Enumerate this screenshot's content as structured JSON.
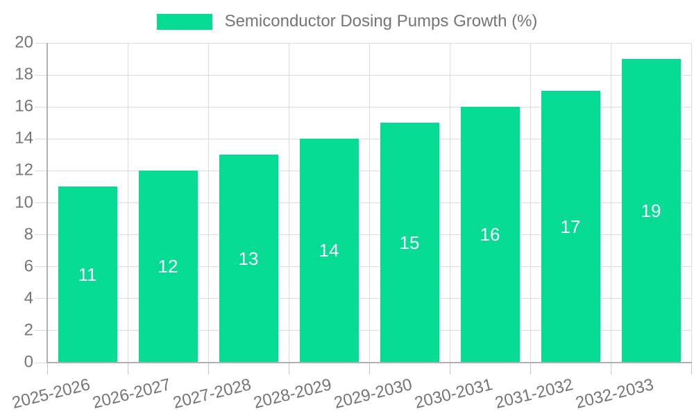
{
  "chart_data": {
    "type": "bar",
    "title": "Semiconductor Dosing Pumps Growth (%)",
    "legend": {
      "position": "top-center",
      "items": [
        {
          "label": "Semiconductor Dosing Pumps Growth (%)",
          "color": "#05DB92"
        }
      ]
    },
    "categories": [
      "2025-2026",
      "2026-2027",
      "2027-2028",
      "2028-2029",
      "2029-2030",
      "2030-2031",
      "2031-2032",
      "2032-2033"
    ],
    "series": [
      {
        "name": "Semiconductor Dosing Pumps Growth (%)",
        "color": "#05DB92",
        "values": [
          11,
          12,
          13,
          14,
          15,
          16,
          17,
          19
        ]
      }
    ],
    "xlabel": "",
    "ylabel": "",
    "ylim": [
      0,
      20
    ],
    "ytick_step": 2,
    "yticks": [
      0,
      2,
      4,
      6,
      8,
      10,
      12,
      14,
      16,
      18,
      20
    ],
    "grid": true,
    "value_labels": {
      "show": true,
      "position": "inside-center",
      "color": "#FFFFFF"
    },
    "x_tick_label_rotation_deg": -14
  },
  "colors": {
    "background": "#FFFFFF",
    "bar": "#05DB92",
    "gridline": "#DCDCDC",
    "tick": "#C6C6C6",
    "axis_line": "#B0B0B0",
    "axis_text": "#757575",
    "legend_text": "#757575",
    "bar_value_text": "#FFFFFF"
  }
}
